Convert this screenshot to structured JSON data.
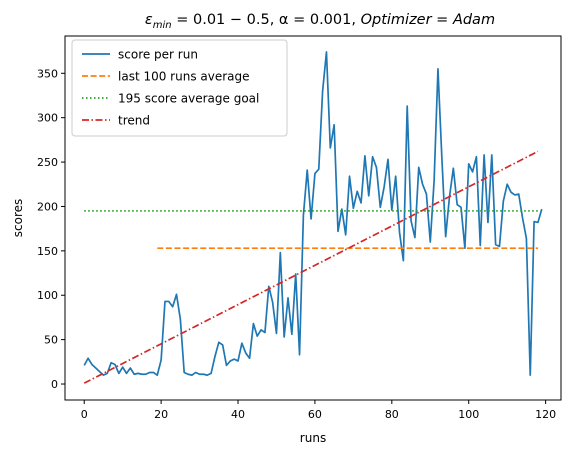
{
  "chart_data": {
    "type": "line",
    "title": "ε_min = 0.01 − 0.5, α = 0.001, Optimizer = Adam",
    "title_parts": {
      "eps": "ε",
      "sub": "min",
      "rest": " = 0.01 − 0.5, α = 0.001, ",
      "opt": "Optimizer",
      "eq": " = ",
      "adam": "Adam"
    },
    "xlabel": "runs",
    "ylabel": "scores",
    "xlim": [
      -5,
      124
    ],
    "ylim": [
      -18,
      392
    ],
    "xticks": [
      0,
      20,
      40,
      60,
      80,
      100,
      120
    ],
    "yticks": [
      0,
      50,
      100,
      150,
      200,
      250,
      300,
      350
    ],
    "grid": false,
    "legend_position": "upper-left",
    "series": [
      {
        "name": "score per run",
        "style": "solid",
        "color": "#1f77b4",
        "x_start": 0,
        "values": [
          21,
          29,
          22,
          18,
          14,
          10,
          12,
          24,
          22,
          12,
          19,
          12,
          18,
          11,
          12,
          11,
          11,
          13,
          13,
          10,
          27,
          93,
          93,
          87,
          101,
          73,
          13,
          11,
          10,
          13,
          11,
          11,
          10,
          12,
          31,
          47,
          44,
          21,
          26,
          28,
          26,
          46,
          35,
          29,
          68,
          54,
          61,
          58,
          110,
          92,
          57,
          148,
          53,
          97,
          56,
          124,
          33,
          190,
          241,
          186,
          237,
          242,
          330,
          374,
          266,
          292,
          172,
          197,
          168,
          234,
          198,
          217,
          204,
          257,
          212,
          256,
          244,
          199,
          222,
          253,
          196,
          234,
          171,
          139,
          313,
          184,
          165,
          244,
          225,
          214,
          160,
          229,
          355,
          256,
          166,
          211,
          243,
          202,
          199,
          153,
          248,
          239,
          256,
          156,
          258,
          182,
          258,
          157,
          155,
          206,
          225,
          216,
          213,
          214,
          187,
          164,
          10,
          183,
          182,
          197
        ]
      },
      {
        "name": "last 100 runs average",
        "style": "dashed",
        "color": "#ff7f0e",
        "x": [
          19,
          118
        ],
        "values": [
          153,
          153
        ]
      },
      {
        "name": "195 score average goal",
        "style": "dotted",
        "color": "#2ca02c",
        "x": [
          0,
          118
        ],
        "values": [
          195,
          195
        ]
      },
      {
        "name": "trend",
        "style": "dashdot",
        "color": "#d62728",
        "x": [
          0,
          118
        ],
        "values": [
          1,
          262
        ]
      }
    ]
  }
}
